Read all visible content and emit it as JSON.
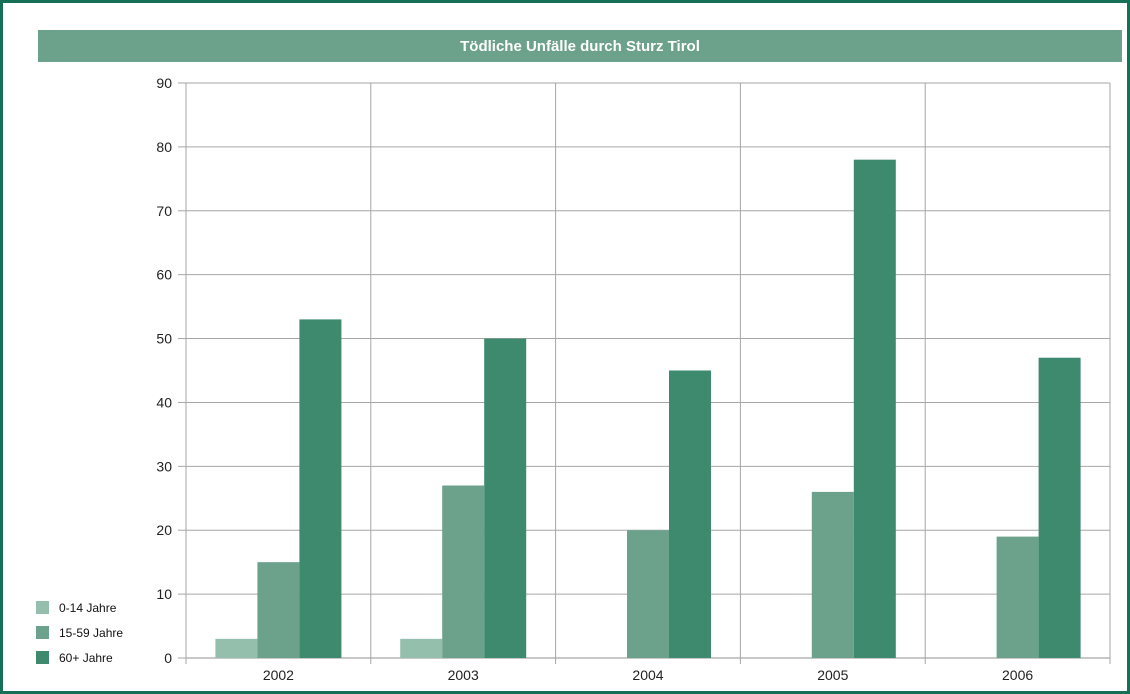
{
  "chart_data": {
    "type": "bar",
    "title": "Tödliche Unfälle durch Sturz Tirol",
    "xlabel": "",
    "ylabel": "",
    "categories": [
      "2002",
      "2003",
      "2004",
      "2005",
      "2006"
    ],
    "ylim": [
      0,
      90
    ],
    "yticks": [
      0,
      10,
      20,
      30,
      40,
      50,
      60,
      70,
      80,
      90
    ],
    "grid": true,
    "legend_position": "bottom-left",
    "series": [
      {
        "name": "0-14 Jahre",
        "color": "#95bfad",
        "values": [
          3,
          3,
          0,
          0,
          0
        ]
      },
      {
        "name": "15-59 Jahre",
        "color": "#6ca28c",
        "values": [
          15,
          27,
          20,
          26,
          19
        ]
      },
      {
        "name": "60+ Jahre",
        "color": "#3e8a6f",
        "values": [
          53,
          50,
          45,
          78,
          47
        ]
      }
    ]
  },
  "colors": {
    "frame": "#157057",
    "title_background": "#6ca28c",
    "grid": "#a6a6a6"
  }
}
